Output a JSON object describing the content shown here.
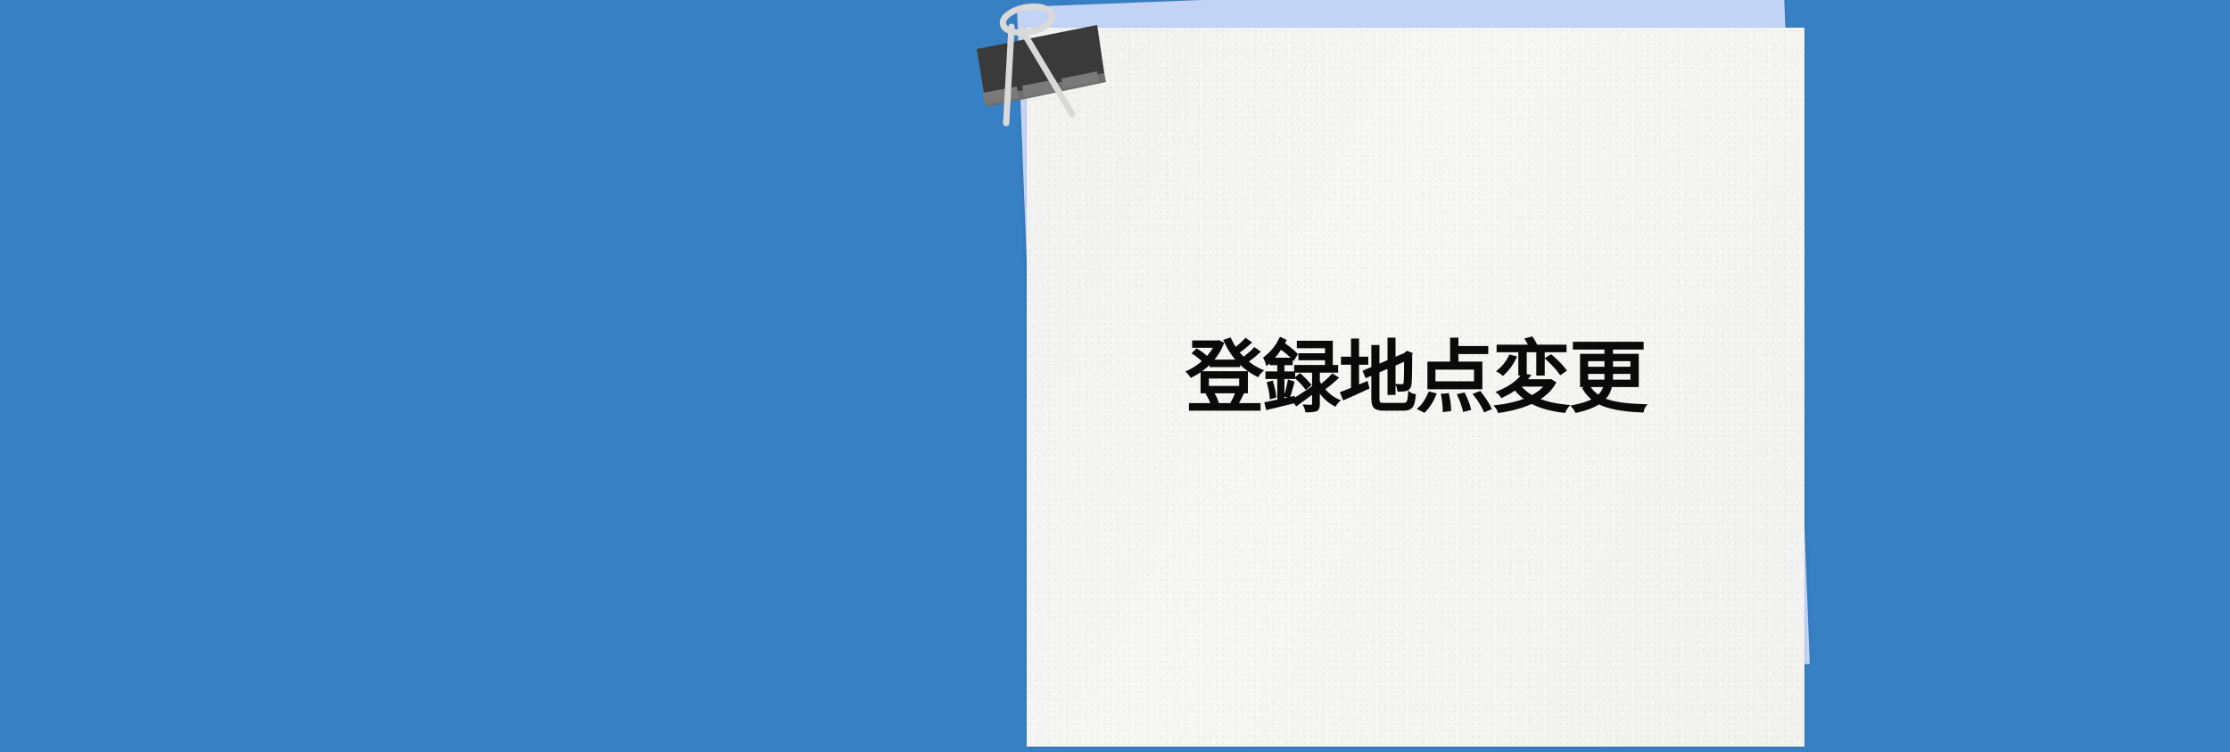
{
  "page": {
    "title": "登録地点変更"
  },
  "colors": {
    "background": "#3880C4",
    "back_sheet": "#C3D3F5",
    "paper": "#F6F6F4",
    "clip_body": "#3A3A3A",
    "clip_wire": "#D9D9D9",
    "text": "#0A0A0A"
  },
  "decor": {
    "clip_icon": "binder-clip-icon"
  }
}
